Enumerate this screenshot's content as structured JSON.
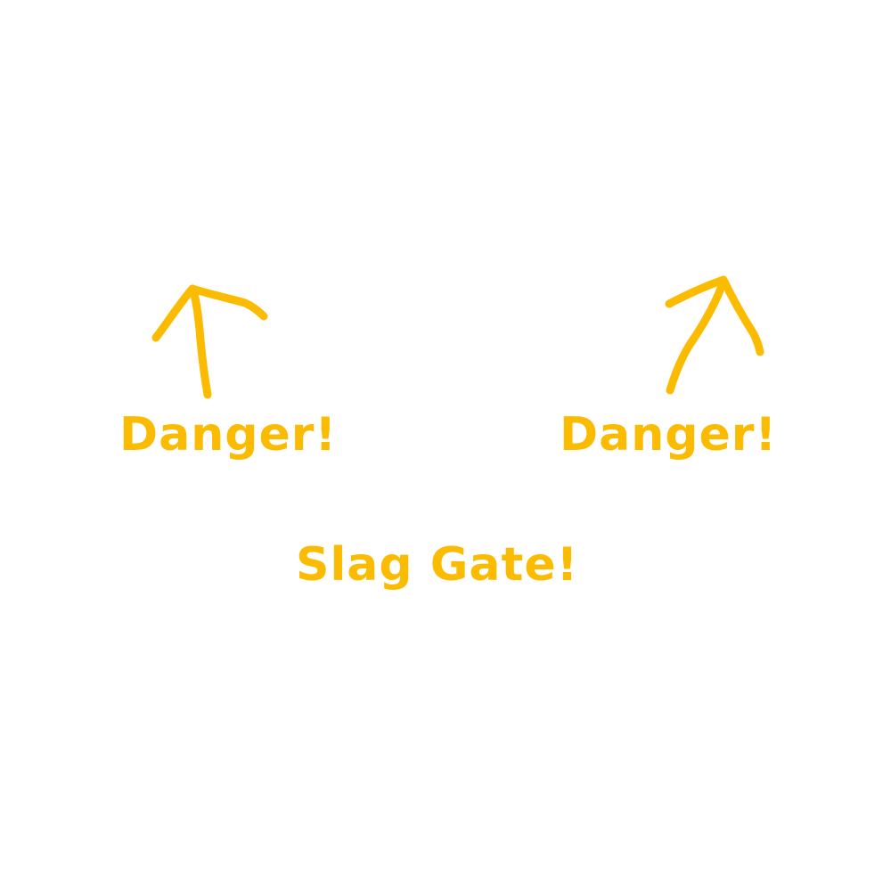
{
  "colors": {
    "ink": "#fbbb00",
    "background": "#ffffff"
  },
  "labels": {
    "danger_left": "Danger!",
    "danger_right": "Danger!",
    "slag_gate": "Slag Gate!"
  },
  "icons": {
    "left_arrow": "arrow-up-icon",
    "right_arrow": "arrow-up-right-icon"
  }
}
